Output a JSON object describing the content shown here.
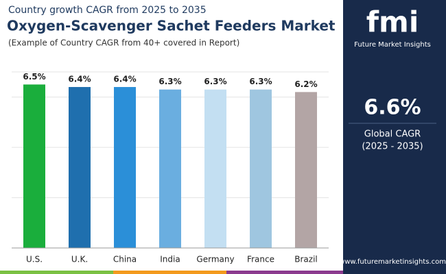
{
  "chart_data": {
    "type": "bar",
    "kicker": "Country growth CAGR from 2025 to 2035",
    "title": "Oxygen-Scavenger Sachet Feeders Market",
    "subtitle": "(Example of Country CAGR from 40+ covered in Report)",
    "categories": [
      "U.S.",
      "U.K.",
      "China",
      "India",
      "Germany",
      "France",
      "Brazil"
    ],
    "values": [
      6.5,
      6.4,
      6.4,
      6.3,
      6.3,
      6.3,
      6.2
    ],
    "value_labels": [
      "6.5%",
      "6.4%",
      "6.4%",
      "6.3%",
      "6.3%",
      "6.3%",
      "6.2%"
    ],
    "colors": [
      "#1aae3c",
      "#1f6fae",
      "#2b8fd8",
      "#6aaee0",
      "#c3dff2",
      "#9fc6e0",
      "#b3a5a5"
    ],
    "ylim": [
      0,
      7
    ],
    "yticks": [
      0,
      2,
      4,
      6
    ],
    "grid": true
  },
  "panel": {
    "logo": "fmi",
    "brand": "Future Market Insights",
    "value": "6.6%",
    "label": "Global CAGR",
    "period": "(2025 - 2035)",
    "website": "www.futuremarketinsights.com"
  }
}
